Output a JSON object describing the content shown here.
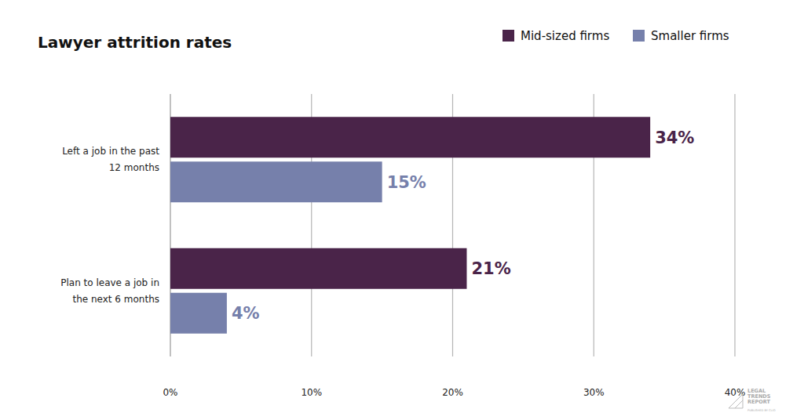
{
  "chart_data": {
    "type": "bar",
    "orientation": "horizontal",
    "title": "Lawyer attrition rates",
    "categories": [
      "Left a job in the past 12 months",
      "Plan to leave a job in the next 6 months"
    ],
    "series": [
      {
        "name": "Mid-sized firms",
        "color": "#4a2449",
        "values": [
          34,
          21
        ],
        "value_labels": [
          "34%",
          "21%"
        ]
      },
      {
        "name": "Smaller firms",
        "color": "#7680ab",
        "values": [
          15,
          4
        ],
        "value_labels": [
          "15%",
          "4%"
        ]
      }
    ],
    "xlim": [
      0,
      40
    ],
    "xticks": [
      {
        "value": 0,
        "label": "0%"
      },
      {
        "value": 10,
        "label": "10%"
      },
      {
        "value": 20,
        "label": "20%"
      },
      {
        "value": 30,
        "label": "30%"
      },
      {
        "value": 40,
        "label": "40%"
      }
    ],
    "grid": true,
    "legend": "top-right",
    "data_labels": true,
    "annotations": [
      "LEGAL TRENDS REPORT",
      "PUBLISHED BY CLIO"
    ]
  }
}
